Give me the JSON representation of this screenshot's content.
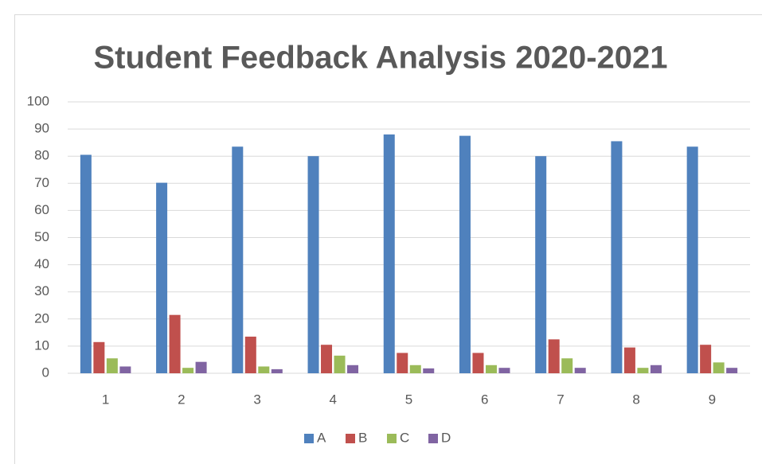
{
  "chart_data": {
    "type": "bar",
    "title": "Student Feedback Analysis 2020-2021",
    "categories": [
      "1",
      "2",
      "3",
      "4",
      "5",
      "6",
      "7",
      "8",
      "9"
    ],
    "series": [
      {
        "name": "A",
        "color": "#4f81bd",
        "values": [
          80.5,
          70.2,
          83.5,
          80,
          88,
          87.5,
          80,
          85.5,
          83.5
        ]
      },
      {
        "name": "B",
        "color": "#c0504d",
        "values": [
          11.5,
          21.5,
          13.5,
          10.5,
          7.5,
          7.5,
          12.5,
          9.5,
          10.5
        ]
      },
      {
        "name": "C",
        "color": "#9bbb59",
        "values": [
          5.5,
          2,
          2.5,
          6.5,
          3,
          3,
          5.5,
          2,
          4
        ]
      },
      {
        "name": "D",
        "color": "#8064a2",
        "values": [
          2.5,
          4.2,
          1.5,
          3,
          1.8,
          2,
          2,
          3,
          2
        ]
      }
    ],
    "ylim": [
      0,
      100
    ],
    "yticks": [
      0,
      10,
      20,
      30,
      40,
      50,
      60,
      70,
      80,
      90,
      100
    ],
    "grid": true,
    "legend": "bottom"
  }
}
